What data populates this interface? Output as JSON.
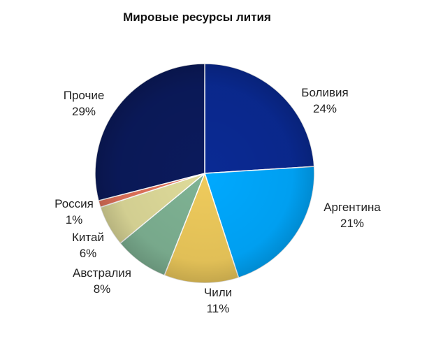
{
  "chart_data": {
    "type": "pie",
    "title": "Мировые ресурсы лития",
    "slices": [
      {
        "name": "Боливия",
        "value": 24,
        "label": "24%",
        "color": "#0a2a94"
      },
      {
        "name": "Аргентина",
        "value": 21,
        "label": "21%",
        "color": "#00a9ff"
      },
      {
        "name": "Чили",
        "value": 11,
        "label": "11%",
        "color": "#efcb5c"
      },
      {
        "name": "Австралия",
        "value": 8,
        "label": "8%",
        "color": "#7fb394"
      },
      {
        "name": "Китай",
        "value": 6,
        "label": "6%",
        "color": "#dfdb9a"
      },
      {
        "name": "Россия",
        "value": 1,
        "label": "1%",
        "color": "#e3735b"
      },
      {
        "name": "Прочие",
        "value": 29,
        "label": "29%",
        "color": "#0b1a5c"
      }
    ],
    "start_angle": "top",
    "direction": "clockwise",
    "legend": "none"
  }
}
